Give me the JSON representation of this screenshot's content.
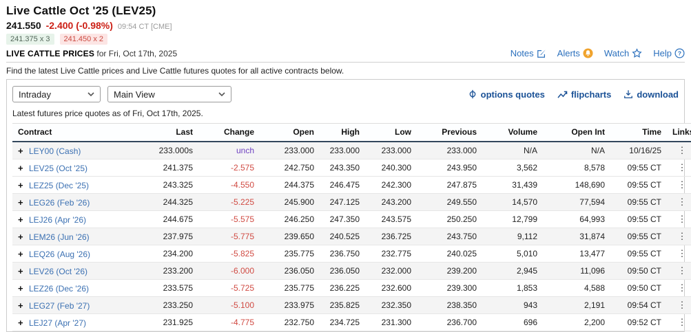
{
  "page": {
    "title": "Live Cattle Oct '25 (LEV25)",
    "quote": {
      "last": "241.550",
      "change": "-2.400 (-0.98%)",
      "timestamp": "09:54 CT [CME]",
      "bid": "241.375 x 3",
      "ask": "241.450 x 2"
    },
    "section": {
      "label": "LIVE CATTLE PRICES",
      "date": "for Fri, Oct 17th, 2025"
    },
    "top_links": {
      "notes": "Notes",
      "alerts": "Alerts",
      "watch": "Watch",
      "help": "Help"
    },
    "description": "Find the latest Live Cattle prices and Live Cattle futures quotes for all active contracts below.",
    "toolbar": {
      "frequency_value": "Intraday",
      "view_value": "Main View",
      "options_quotes": "options quotes",
      "flipcharts": "flipcharts",
      "download": "download",
      "as_of": "Latest futures price quotes as of Fri, Oct 17th, 2025."
    }
  },
  "colors": {
    "change_red": "#cc2016",
    "table_red": "#d04a42",
    "unch_purple": "#6f42c1",
    "link_blue": "#3b70b2",
    "top_link_blue": "#2b70bd",
    "action_navy": "#1a5196",
    "alert_orange": "#f0a32d",
    "bid_bg": "#e7f3ea",
    "ask_bg": "#fce5e4",
    "row_shade": "#f4f4f4",
    "header_border": "#33475c"
  },
  "icons": {
    "notes": "notes-edit-icon",
    "alerts": "alert-bell-icon",
    "watch": "watch-star-icon",
    "help": "help-question-icon",
    "options": "options-phi-icon",
    "flipcharts": "flipchart-line-icon",
    "download": "download-icon",
    "chevron": "chevron-down-icon"
  },
  "table": {
    "expand_glyph": "+",
    "links_glyph": "⋮",
    "columns": [
      "Contract",
      "Last",
      "Change",
      "Open",
      "High",
      "Low",
      "Previous",
      "Volume",
      "Open Int",
      "Time",
      "Links"
    ],
    "rows": [
      {
        "contract": "LEY00 (Cash)",
        "last": "233.000s",
        "change": "unch",
        "open": "233.000",
        "high": "233.000",
        "low": "233.000",
        "previous": "233.000",
        "volume": "N/A",
        "open_int": "N/A",
        "time": "10/16/25",
        "shaded": true,
        "unch": true
      },
      {
        "contract": "LEV25 (Oct '25)",
        "last": "241.375",
        "change": "-2.575",
        "open": "242.750",
        "high": "243.350",
        "low": "240.300",
        "previous": "243.950",
        "volume": "3,562",
        "open_int": "8,578",
        "time": "09:55 CT",
        "shaded": false,
        "unch": false
      },
      {
        "contract": "LEZ25 (Dec '25)",
        "last": "243.325",
        "change": "-4.550",
        "open": "244.375",
        "high": "246.475",
        "low": "242.300",
        "previous": "247.875",
        "volume": "31,439",
        "open_int": "148,690",
        "time": "09:55 CT",
        "shaded": false,
        "unch": false
      },
      {
        "contract": "LEG26 (Feb '26)",
        "last": "244.325",
        "change": "-5.225",
        "open": "245.900",
        "high": "247.125",
        "low": "243.200",
        "previous": "249.550",
        "volume": "14,570",
        "open_int": "77,594",
        "time": "09:55 CT",
        "shaded": true,
        "unch": false
      },
      {
        "contract": "LEJ26 (Apr '26)",
        "last": "244.675",
        "change": "-5.575",
        "open": "246.250",
        "high": "247.350",
        "low": "243.575",
        "previous": "250.250",
        "volume": "12,799",
        "open_int": "64,993",
        "time": "09:55 CT",
        "shaded": false,
        "unch": false
      },
      {
        "contract": "LEM26 (Jun '26)",
        "last": "237.975",
        "change": "-5.775",
        "open": "239.650",
        "high": "240.525",
        "low": "236.725",
        "previous": "243.750",
        "volume": "9,112",
        "open_int": "31,874",
        "time": "09:55 CT",
        "shaded": true,
        "unch": false
      },
      {
        "contract": "LEQ26 (Aug '26)",
        "last": "234.200",
        "change": "-5.825",
        "open": "235.775",
        "high": "236.750",
        "low": "232.775",
        "previous": "240.025",
        "volume": "5,010",
        "open_int": "13,477",
        "time": "09:55 CT",
        "shaded": false,
        "unch": false
      },
      {
        "contract": "LEV26 (Oct '26)",
        "last": "233.200",
        "change": "-6.000",
        "open": "236.050",
        "high": "236.050",
        "low": "232.000",
        "previous": "239.200",
        "volume": "2,945",
        "open_int": "11,096",
        "time": "09:50 CT",
        "shaded": true,
        "unch": false
      },
      {
        "contract": "LEZ26 (Dec '26)",
        "last": "233.575",
        "change": "-5.725",
        "open": "235.775",
        "high": "236.225",
        "low": "232.600",
        "previous": "239.300",
        "volume": "1,853",
        "open_int": "4,588",
        "time": "09:50 CT",
        "shaded": false,
        "unch": false
      },
      {
        "contract": "LEG27 (Feb '27)",
        "last": "233.250",
        "change": "-5.100",
        "open": "233.975",
        "high": "235.825",
        "low": "232.350",
        "previous": "238.350",
        "volume": "943",
        "open_int": "2,191",
        "time": "09:54 CT",
        "shaded": true,
        "unch": false
      },
      {
        "contract": "LEJ27 (Apr '27)",
        "last": "231.925",
        "change": "-4.775",
        "open": "232.750",
        "high": "234.725",
        "low": "231.300",
        "previous": "236.700",
        "volume": "696",
        "open_int": "2,200",
        "time": "09:52 CT",
        "shaded": false,
        "unch": false
      }
    ]
  }
}
